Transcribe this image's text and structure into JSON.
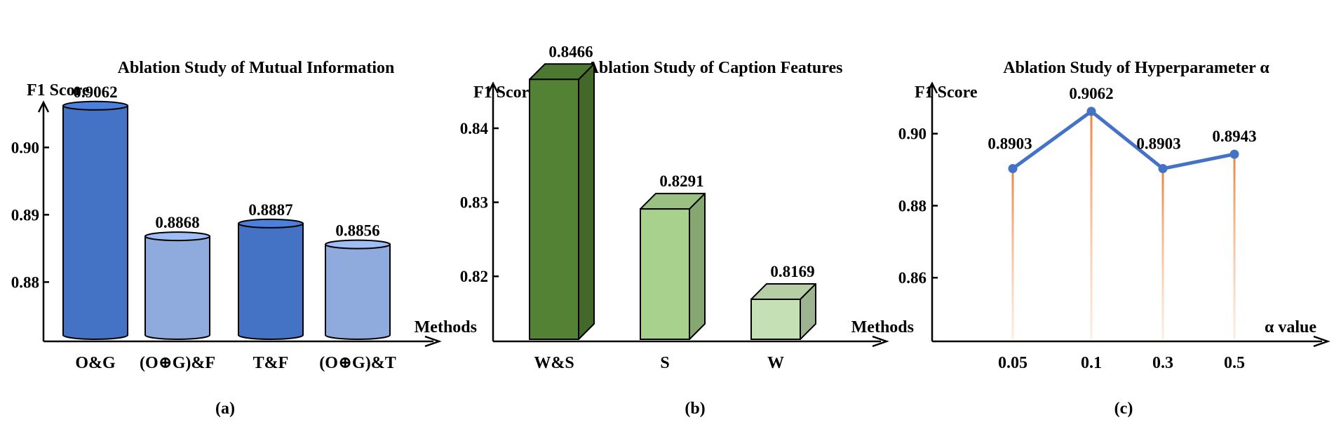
{
  "chart_data": [
    {
      "type": "bar",
      "title": "Ablation Study of Mutual Information",
      "xlabel": "Methods",
      "ylabel": "F1 Score",
      "caption": "(a)",
      "categories": [
        "O&G",
        "(O⊕G)&F",
        "T&F",
        "(O⊕G)&T"
      ],
      "values": [
        0.9062,
        0.8868,
        0.8887,
        0.8856
      ],
      "value_labels": [
        "0.9062",
        "0.8868",
        "0.8887",
        "0.8856"
      ],
      "yticks": [
        "0.88",
        "0.89",
        "0.90"
      ],
      "ytick_values": [
        0.88,
        0.89,
        0.9
      ],
      "ylim": [
        0.8715,
        0.9067
      ],
      "colors": [
        "#4472c4",
        "#8faadc",
        "#4472c4",
        "#8faadc"
      ],
      "style": "cylinder",
      "grid": false,
      "legend": "none"
    },
    {
      "type": "bar",
      "title": "Ablation Study of Caption Features",
      "xlabel": "Methods",
      "ylabel": "F1 Score",
      "caption": "(b)",
      "categories": [
        "W&S",
        "S",
        "W"
      ],
      "values": [
        0.8466,
        0.8291,
        0.8169
      ],
      "value_labels": [
        "0.8466",
        "0.8291",
        "0.8169"
      ],
      "yticks": [
        "0.82",
        "0.83",
        "0.84"
      ],
      "ytick_values": [
        0.82,
        0.83,
        0.84
      ],
      "ylim": [
        0.8115,
        0.8435
      ],
      "colors": [
        "#548235",
        "#a9d18e",
        "#c5e0b4"
      ],
      "style": "3d-box",
      "grid": false,
      "legend": "none"
    },
    {
      "type": "line",
      "title": "Ablation Study of Hyperparameter α",
      "xlabel": "α value",
      "ylabel": "F1 Score",
      "caption": "(c)",
      "categories": [
        "0.05",
        "0.1",
        "0.3",
        "0.5"
      ],
      "values": [
        0.8903,
        0.9062,
        0.8903,
        0.8943
      ],
      "value_labels": [
        "0.8903",
        "0.9062",
        "0.8903",
        "0.8943"
      ],
      "yticks": [
        "0.86",
        "0.88",
        "0.90"
      ],
      "ytick_values": [
        0.86,
        0.88,
        0.9
      ],
      "ylim": [
        0.8429,
        0.9087
      ],
      "line_color": "#4472c4",
      "drop_line_color": "#f4b183",
      "grid": false,
      "legend": "none"
    }
  ]
}
